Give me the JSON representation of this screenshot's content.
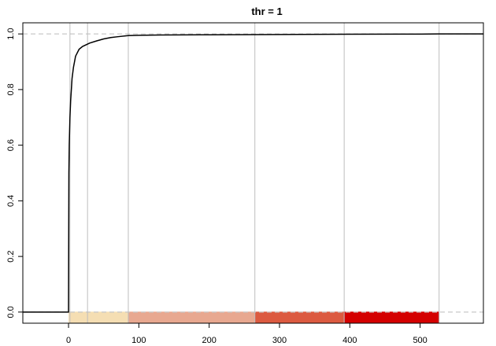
{
  "chart_data": {
    "type": "line",
    "title": "thr = 1",
    "xlabel": "",
    "ylabel": "",
    "xlim": [
      -65,
      590
    ],
    "ylim": [
      -0.04,
      1.04
    ],
    "x_ticks": [
      0,
      100,
      200,
      300,
      400,
      500
    ],
    "y_ticks": [
      0.0,
      0.2,
      0.4,
      0.6,
      0.8,
      1.0
    ],
    "reference_lines_y": [
      0,
      1
    ],
    "vertical_lines_x": [
      2,
      27,
      85,
      265,
      392,
      527
    ],
    "color_bands": [
      {
        "from": 0,
        "to": 85,
        "color": "#f5deb3"
      },
      {
        "from": 85,
        "to": 265,
        "color": "#e8a890"
      },
      {
        "from": 265,
        "to": 392,
        "color": "#dc5a40"
      },
      {
        "from": 392,
        "to": 527,
        "color": "#d40000"
      }
    ],
    "series": [
      {
        "x": [
          -65,
          0,
          0.5,
          1,
          2,
          3,
          4,
          5,
          7,
          10,
          15,
          20,
          30,
          40,
          50,
          60,
          70,
          85,
          100,
          130,
          200,
          300,
          400,
          500,
          527,
          590
        ],
        "y": [
          0,
          0,
          0.5,
          0.6,
          0.7,
          0.76,
          0.8,
          0.84,
          0.88,
          0.92,
          0.945,
          0.955,
          0.967,
          0.975,
          0.982,
          0.987,
          0.99,
          0.994,
          0.995,
          0.996,
          0.997,
          0.998,
          0.999,
          0.9995,
          1.0,
          1.0
        ],
        "color": "#000000"
      }
    ]
  }
}
